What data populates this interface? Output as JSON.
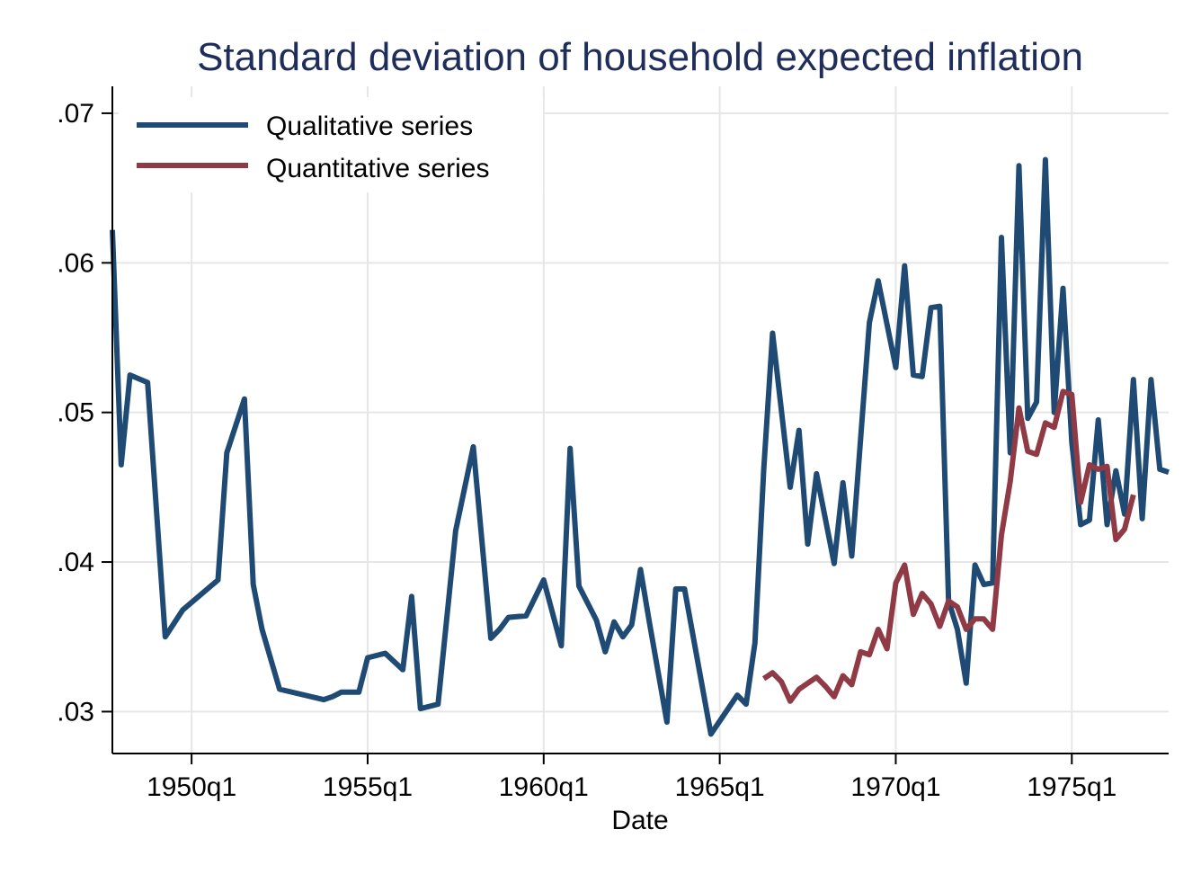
{
  "chart_data": {
    "type": "line",
    "title": "Standard deviation of household expected inflation",
    "xlabel": "Date",
    "ylabel": "",
    "xlim": [
      "1947q4",
      "1977q4"
    ],
    "ylim": [
      0.0272,
      0.0718
    ],
    "x_ticks": [
      {
        "value": "1950q1",
        "label": "1950q1"
      },
      {
        "value": "1955q1",
        "label": "1955q1"
      },
      {
        "value": "1960q1",
        "label": "1960q1"
      },
      {
        "value": "1965q1",
        "label": "1965q1"
      },
      {
        "value": "1970q1",
        "label": "1970q1"
      },
      {
        "value": "1975q1",
        "label": "1975q1"
      }
    ],
    "y_ticks": [
      {
        "value": 0.03,
        "label": ".03"
      },
      {
        "value": 0.04,
        "label": ".04"
      },
      {
        "value": 0.05,
        "label": ".05"
      },
      {
        "value": 0.06,
        "label": ".06"
      },
      {
        "value": 0.07,
        "label": ".07"
      }
    ],
    "grid": true,
    "legend_position": "top-left",
    "series": [
      {
        "name": "Qualitative series",
        "color": "#1f4a73",
        "points": [
          [
            "1947q4",
            0.0622
          ],
          [
            "1948q1",
            0.0465
          ],
          [
            "1948q2",
            0.0525
          ],
          [
            "1948q4",
            0.052
          ],
          [
            "1949q2",
            0.035
          ],
          [
            "1949q4",
            0.0368
          ],
          [
            "1950q4",
            0.0388
          ],
          [
            "1951q1",
            0.0473
          ],
          [
            "1951q3",
            0.0509
          ],
          [
            "1951q4",
            0.0385
          ],
          [
            "1952q1",
            0.0355
          ],
          [
            "1952q3",
            0.0315
          ],
          [
            "1953q4",
            0.0308
          ],
          [
            "1954q1",
            0.031
          ],
          [
            "1954q2",
            0.0313
          ],
          [
            "1954q4",
            0.0313
          ],
          [
            "1955q1",
            0.0336
          ],
          [
            "1955q3",
            0.0339
          ],
          [
            "1956q1",
            0.0328
          ],
          [
            "1956q2",
            0.0377
          ],
          [
            "1956q3",
            0.0302
          ],
          [
            "1957q1",
            0.0305
          ],
          [
            "1957q3",
            0.0421
          ],
          [
            "1958q1",
            0.0477
          ],
          [
            "1958q3",
            0.0349
          ],
          [
            "1958q4",
            0.0355
          ],
          [
            "1959q1",
            0.0363
          ],
          [
            "1959q3",
            0.0364
          ],
          [
            "1960q1",
            0.0388
          ],
          [
            "1960q3",
            0.0344
          ],
          [
            "1960q4",
            0.0476
          ],
          [
            "1961q1",
            0.0384
          ],
          [
            "1961q3",
            0.0361
          ],
          [
            "1961q4",
            0.034
          ],
          [
            "1962q1",
            0.036
          ],
          [
            "1962q2",
            0.035
          ],
          [
            "1962q3",
            0.0358
          ],
          [
            "1962q4",
            0.0395
          ],
          [
            "1963q1",
            0.036
          ],
          [
            "1963q3",
            0.0293
          ],
          [
            "1963q4",
            0.0382
          ],
          [
            "1964q1",
            0.0382
          ],
          [
            "1964q4",
            0.0285
          ],
          [
            "1965q3",
            0.0311
          ],
          [
            "1965q4",
            0.0305
          ],
          [
            "1966q1",
            0.0346
          ],
          [
            "1966q2",
            0.0462
          ],
          [
            "1966q3",
            0.0553
          ],
          [
            "1967q1",
            0.045
          ],
          [
            "1967q2",
            0.0488
          ],
          [
            "1967q3",
            0.0412
          ],
          [
            "1967q4",
            0.0459
          ],
          [
            "1968q2",
            0.0399
          ],
          [
            "1968q3",
            0.0453
          ],
          [
            "1968q4",
            0.0404
          ],
          [
            "1969q2",
            0.056
          ],
          [
            "1969q3",
            0.0588
          ],
          [
            "1970q1",
            0.053
          ],
          [
            "1970q2",
            0.0598
          ],
          [
            "1970q3",
            0.0525
          ],
          [
            "1970q4",
            0.0524
          ],
          [
            "1971q1",
            0.057
          ],
          [
            "1971q2",
            0.0571
          ],
          [
            "1971q3",
            0.0374
          ],
          [
            "1971q4",
            0.0355
          ],
          [
            "1972q1",
            0.0319
          ],
          [
            "1972q2",
            0.0398
          ],
          [
            "1972q3",
            0.0385
          ],
          [
            "1972q4",
            0.0386
          ],
          [
            "1973q1",
            0.0617
          ],
          [
            "1973q2",
            0.0473
          ],
          [
            "1973q3",
            0.0665
          ],
          [
            "1973q4",
            0.0496
          ],
          [
            "1974q1",
            0.0507
          ],
          [
            "1974q2",
            0.0669
          ],
          [
            "1974q3",
            0.05
          ],
          [
            "1974q4",
            0.0583
          ],
          [
            "1975q1",
            0.048
          ],
          [
            "1975q2",
            0.0425
          ],
          [
            "1975q3",
            0.0428
          ],
          [
            "1975q4",
            0.0495
          ],
          [
            "1976q1",
            0.0425
          ],
          [
            "1976q2",
            0.0461
          ],
          [
            "1976q3",
            0.0432
          ],
          [
            "1976q4",
            0.0522
          ],
          [
            "1977q1",
            0.0429
          ],
          [
            "1977q2",
            0.0522
          ],
          [
            "1977q3",
            0.0462
          ],
          [
            "1977q4",
            0.046
          ]
        ]
      },
      {
        "name": "Quantitative series",
        "color": "#8f3a44",
        "points": [
          [
            "1966q2",
            0.0322
          ],
          [
            "1966q3",
            0.0326
          ],
          [
            "1966q4",
            0.032
          ],
          [
            "1967q1",
            0.0307
          ],
          [
            "1967q2",
            0.0315
          ],
          [
            "1967q3",
            0.0319
          ],
          [
            "1967q4",
            0.0323
          ],
          [
            "1968q1",
            0.0317
          ],
          [
            "1968q2",
            0.031
          ],
          [
            "1968q3",
            0.0324
          ],
          [
            "1968q4",
            0.0318
          ],
          [
            "1969q1",
            0.034
          ],
          [
            "1969q2",
            0.0338
          ],
          [
            "1969q3",
            0.0355
          ],
          [
            "1969q4",
            0.0342
          ],
          [
            "1970q1",
            0.0386
          ],
          [
            "1970q2",
            0.0398
          ],
          [
            "1970q3",
            0.0365
          ],
          [
            "1970q4",
            0.0379
          ],
          [
            "1971q1",
            0.0372
          ],
          [
            "1971q2",
            0.0357
          ],
          [
            "1971q3",
            0.0374
          ],
          [
            "1971q4",
            0.037
          ],
          [
            "1972q1",
            0.0355
          ],
          [
            "1972q2",
            0.0362
          ],
          [
            "1972q3",
            0.0362
          ],
          [
            "1972q4",
            0.0355
          ],
          [
            "1973q1",
            0.0418
          ],
          [
            "1973q2",
            0.0454
          ],
          [
            "1973q3",
            0.0503
          ],
          [
            "1973q4",
            0.0474
          ],
          [
            "1974q1",
            0.0472
          ],
          [
            "1974q2",
            0.0493
          ],
          [
            "1974q3",
            0.049
          ],
          [
            "1974q4",
            0.0514
          ],
          [
            "1975q1",
            0.0512
          ],
          [
            "1975q2",
            0.044
          ],
          [
            "1975q3",
            0.0465
          ],
          [
            "1975q4",
            0.0462
          ],
          [
            "1976q1",
            0.0464
          ],
          [
            "1976q2",
            0.0415
          ],
          [
            "1976q3",
            0.0422
          ],
          [
            "1976q4",
            0.0445
          ]
        ]
      }
    ]
  }
}
